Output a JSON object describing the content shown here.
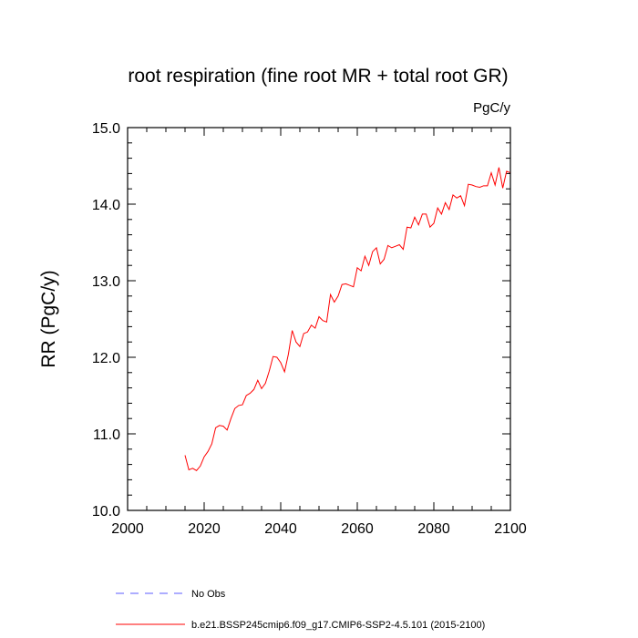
{
  "chart_data": {
    "type": "line",
    "title": "root respiration (fine root MR + total root GR)",
    "units": "PgC/y",
    "xlabel": "",
    "ylabel": "RR  (PgC/y)",
    "xlim": [
      2000,
      2100
    ],
    "ylim": [
      10.0,
      15.0
    ],
    "x_ticks": [
      2000,
      2020,
      2040,
      2060,
      2080,
      2100
    ],
    "x_tick_labels": [
      "2000",
      "2020",
      "2040",
      "2060",
      "2080",
      "2100"
    ],
    "y_ticks": [
      10.0,
      11.0,
      12.0,
      13.0,
      14.0,
      15.0
    ],
    "y_tick_labels": [
      "10.0",
      "11.0",
      "12.0",
      "13.0",
      "14.0",
      "15.0"
    ],
    "grid": false,
    "legend_position": "bottom",
    "series": [
      {
        "name": "No Obs",
        "color": "#5b5bff",
        "style": "dashed",
        "x": [],
        "y": []
      },
      {
        "name": "b.e21.BSSP245cmip6.f09_g17.CMIP6-SSP2-4.5.101 (2015-2100)",
        "color": "#ff0000",
        "style": "solid",
        "x": [
          2015,
          2016,
          2017,
          2018,
          2019,
          2020,
          2021,
          2022,
          2023,
          2024,
          2025,
          2026,
          2027,
          2028,
          2029,
          2030,
          2031,
          2032,
          2033,
          2034,
          2035,
          2036,
          2037,
          2038,
          2039,
          2040,
          2041,
          2042,
          2043,
          2044,
          2045,
          2046,
          2047,
          2048,
          2049,
          2050,
          2051,
          2052,
          2053,
          2054,
          2055,
          2056,
          2057,
          2058,
          2059,
          2060,
          2061,
          2062,
          2063,
          2064,
          2065,
          2066,
          2067,
          2068,
          2069,
          2070,
          2071,
          2072,
          2073,
          2074,
          2075,
          2076,
          2077,
          2078,
          2079,
          2080,
          2081,
          2082,
          2083,
          2084,
          2085,
          2086,
          2087,
          2088,
          2089,
          2090,
          2091,
          2092,
          2093,
          2094,
          2095,
          2096,
          2097,
          2098,
          2099,
          2100
        ],
        "y": [
          10.72,
          10.53,
          10.55,
          10.52,
          10.58,
          10.7,
          10.77,
          10.87,
          11.08,
          11.11,
          11.1,
          11.05,
          11.2,
          11.33,
          11.37,
          11.38,
          11.5,
          11.53,
          11.58,
          11.7,
          11.59,
          11.66,
          11.82,
          12.01,
          12.0,
          11.93,
          11.81,
          12.04,
          12.35,
          12.2,
          12.14,
          12.31,
          12.33,
          12.42,
          12.38,
          12.53,
          12.48,
          12.46,
          12.82,
          12.72,
          12.8,
          12.95,
          12.96,
          12.94,
          12.92,
          13.17,
          13.13,
          13.32,
          13.2,
          13.38,
          13.43,
          13.22,
          13.28,
          13.46,
          13.43,
          13.45,
          13.47,
          13.41,
          13.7,
          13.69,
          13.83,
          13.73,
          13.87,
          13.87,
          13.7,
          13.75,
          13.95,
          13.87,
          14.02,
          13.93,
          14.12,
          14.08,
          14.11,
          13.98,
          14.26,
          14.25,
          14.23,
          14.22,
          14.24,
          14.24,
          14.41,
          14.25,
          14.48,
          14.21,
          14.43,
          14.41
        ]
      }
    ]
  }
}
